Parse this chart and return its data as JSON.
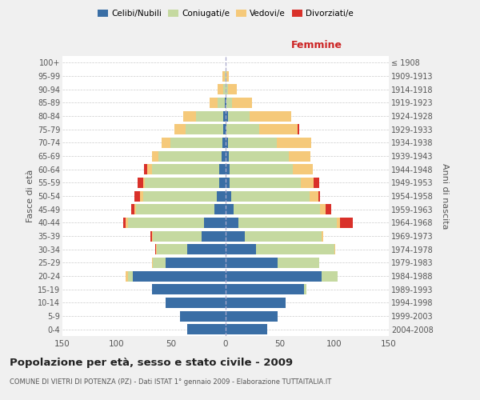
{
  "age_groups": [
    "0-4",
    "5-9",
    "10-14",
    "15-19",
    "20-24",
    "25-29",
    "30-34",
    "35-39",
    "40-44",
    "45-49",
    "50-54",
    "55-59",
    "60-64",
    "65-69",
    "70-74",
    "75-79",
    "80-84",
    "85-89",
    "90-94",
    "95-99",
    "100+"
  ],
  "birth_years": [
    "2004-2008",
    "1999-2003",
    "1994-1998",
    "1989-1993",
    "1984-1988",
    "1979-1983",
    "1974-1978",
    "1969-1973",
    "1964-1968",
    "1959-1963",
    "1954-1958",
    "1949-1953",
    "1944-1948",
    "1939-1943",
    "1934-1938",
    "1929-1933",
    "1924-1928",
    "1919-1923",
    "1914-1918",
    "1909-1913",
    "≤ 1908"
  ],
  "male_celibi": [
    35,
    42,
    55,
    68,
    85,
    55,
    35,
    22,
    20,
    10,
    8,
    6,
    6,
    4,
    3,
    2,
    2,
    1,
    0,
    0,
    0
  ],
  "male_coniugati": [
    0,
    0,
    0,
    0,
    5,
    12,
    28,
    45,
    70,
    72,
    68,
    68,
    62,
    58,
    48,
    35,
    25,
    6,
    2,
    1,
    0
  ],
  "male_vedovi": [
    0,
    0,
    0,
    0,
    2,
    1,
    1,
    1,
    2,
    2,
    3,
    2,
    4,
    6,
    8,
    10,
    12,
    8,
    5,
    2,
    0
  ],
  "male_divorziati": [
    0,
    0,
    0,
    0,
    0,
    0,
    1,
    1,
    2,
    3,
    5,
    5,
    3,
    0,
    0,
    0,
    0,
    0,
    0,
    0,
    0
  ],
  "fem_nubili": [
    38,
    48,
    55,
    72,
    88,
    48,
    28,
    18,
    12,
    7,
    5,
    4,
    4,
    3,
    2,
    1,
    2,
    1,
    0,
    0,
    0
  ],
  "fem_coniugate": [
    0,
    0,
    0,
    2,
    15,
    38,
    72,
    70,
    90,
    80,
    72,
    65,
    58,
    55,
    45,
    30,
    20,
    5,
    2,
    1,
    0
  ],
  "fem_vedove": [
    0,
    0,
    0,
    0,
    0,
    0,
    1,
    2,
    3,
    5,
    8,
    12,
    18,
    20,
    32,
    35,
    38,
    18,
    8,
    2,
    0
  ],
  "fem_divorziate": [
    0,
    0,
    0,
    0,
    0,
    0,
    0,
    0,
    12,
    5,
    2,
    5,
    0,
    0,
    0,
    2,
    0,
    0,
    0,
    0,
    0
  ],
  "colors_celibi": "#3a6ea5",
  "colors_coniugati": "#c5d9a0",
  "colors_vedovi": "#f5c97a",
  "colors_divorziati": "#d9312a",
  "xlim": 150,
  "title": "Popolazione per età, sesso e stato civile - 2009",
  "subtitle": "COMUNE DI VIETRI DI POTENZA (PZ) - Dati ISTAT 1° gennaio 2009 - Elaborazione TUTTAITALIA.IT",
  "bg_color": "#f0f0f0",
  "plot_bg": "#ffffff",
  "grid_color": "#cccccc"
}
